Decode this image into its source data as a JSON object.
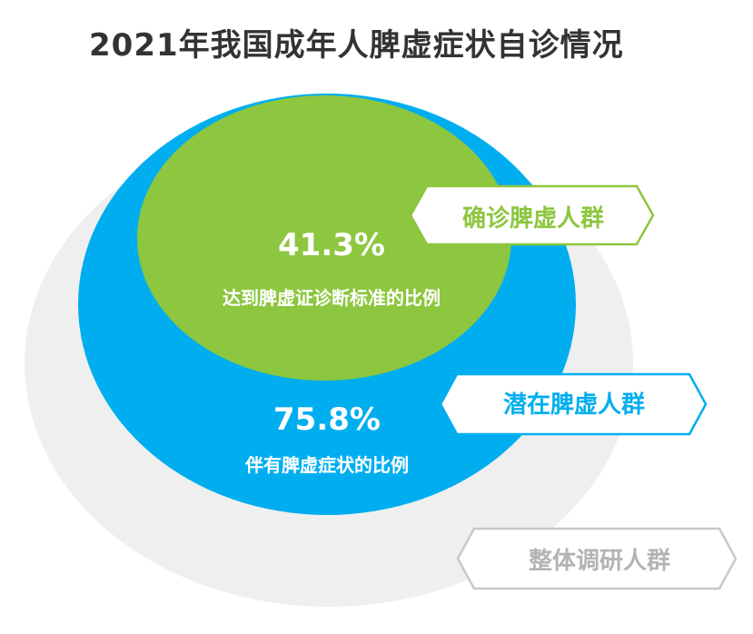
{
  "title": "2021年我国成年人脾虚症状自诊情况",
  "chart_data": {
    "type": "nested-circles",
    "title": "2021年我国成年人脾虚症状自诊情况",
    "groups": [
      {
        "name": "整体调研人群",
        "color": "#efefef",
        "outline": "#c8c8c8"
      },
      {
        "name": "潜在脾虚人群",
        "value": 75.8,
        "value_label": "75.8%",
        "description": "伴有脾虚症状的比例",
        "color": "#00aeef"
      },
      {
        "name": "确诊脾虚人群",
        "value": 41.3,
        "value_label": "41.3%",
        "description": "达到脾虚证诊断标准的比例",
        "color": "#8dc63f"
      }
    ]
  }
}
